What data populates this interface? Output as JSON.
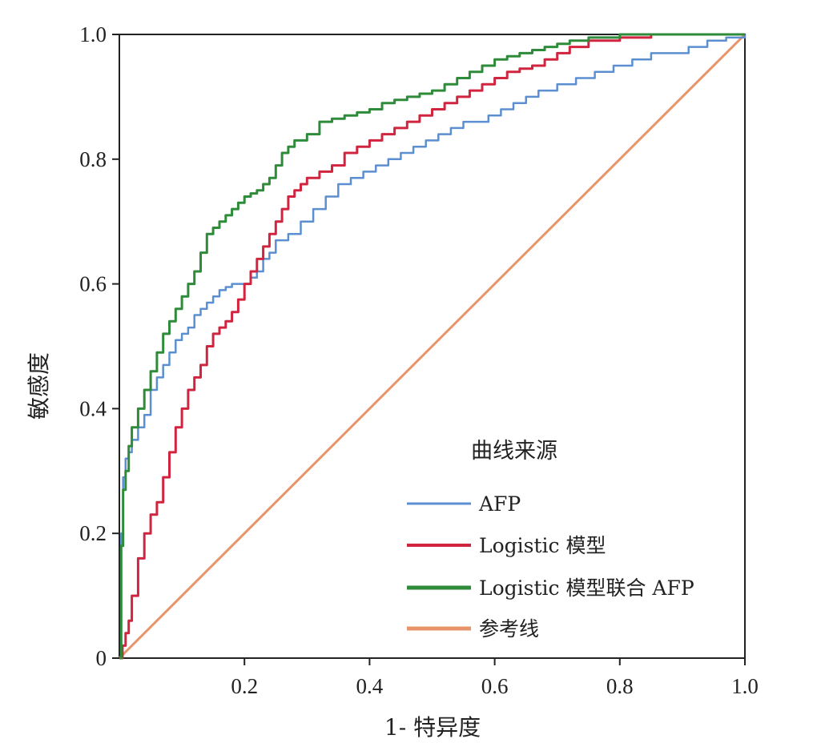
{
  "chart_data": {
    "type": "line",
    "title": "",
    "xlabel": "1- 特异度",
    "ylabel": "敏感度",
    "xlim": [
      0,
      1
    ],
    "ylim": [
      0,
      1
    ],
    "xticks": [
      0.2,
      0.4,
      0.6,
      0.8,
      1.0
    ],
    "xtick_labels": [
      "0.2",
      "0.4",
      "0.6",
      "0.8",
      "1.0"
    ],
    "yticks": [
      0,
      0.2,
      0.4,
      0.6,
      0.8,
      1.0
    ],
    "ytick_labels": [
      "0",
      "0.2",
      "0.4",
      "0.6",
      "0.8",
      "1.0"
    ],
    "legend": {
      "title": "曲线来源",
      "location": "lower-right"
    },
    "series": [
      {
        "name": "AFP",
        "color": "#5b8fd1",
        "x": [
          0,
          0.003,
          0.006,
          0.01,
          0.015,
          0.02,
          0.03,
          0.04,
          0.05,
          0.06,
          0.07,
          0.08,
          0.09,
          0.1,
          0.11,
          0.12,
          0.13,
          0.14,
          0.15,
          0.16,
          0.17,
          0.18,
          0.19,
          0.2,
          0.21,
          0.22,
          0.23,
          0.24,
          0.25,
          0.27,
          0.29,
          0.31,
          0.33,
          0.35,
          0.37,
          0.39,
          0.41,
          0.43,
          0.45,
          0.47,
          0.49,
          0.51,
          0.53,
          0.55,
          0.57,
          0.59,
          0.61,
          0.63,
          0.65,
          0.67,
          0.7,
          0.73,
          0.76,
          0.79,
          0.82,
          0.85,
          0.88,
          0.91,
          0.94,
          0.97,
          1.0
        ],
        "y": [
          0,
          0.2,
          0.29,
          0.32,
          0.33,
          0.35,
          0.37,
          0.39,
          0.43,
          0.45,
          0.47,
          0.49,
          0.51,
          0.52,
          0.53,
          0.55,
          0.56,
          0.57,
          0.58,
          0.59,
          0.595,
          0.6,
          0.6,
          0.6,
          0.61,
          0.62,
          0.64,
          0.65,
          0.67,
          0.68,
          0.7,
          0.72,
          0.74,
          0.76,
          0.77,
          0.78,
          0.79,
          0.8,
          0.81,
          0.82,
          0.83,
          0.84,
          0.85,
          0.86,
          0.86,
          0.87,
          0.88,
          0.89,
          0.9,
          0.91,
          0.92,
          0.93,
          0.94,
          0.95,
          0.96,
          0.97,
          0.97,
          0.98,
          0.99,
          0.995,
          1.0
        ]
      },
      {
        "name": "Logistic 模型",
        "color": "#d0243f",
        "x": [
          0,
          0.005,
          0.01,
          0.015,
          0.02,
          0.03,
          0.04,
          0.05,
          0.06,
          0.07,
          0.08,
          0.09,
          0.1,
          0.11,
          0.12,
          0.13,
          0.14,
          0.15,
          0.16,
          0.17,
          0.18,
          0.19,
          0.2,
          0.21,
          0.22,
          0.23,
          0.24,
          0.25,
          0.26,
          0.27,
          0.28,
          0.29,
          0.3,
          0.32,
          0.34,
          0.36,
          0.38,
          0.4,
          0.42,
          0.44,
          0.46,
          0.48,
          0.5,
          0.52,
          0.54,
          0.56,
          0.58,
          0.6,
          0.62,
          0.64,
          0.66,
          0.68,
          0.7,
          0.72,
          0.75,
          0.8,
          0.85,
          0.9,
          0.95,
          1.0
        ],
        "y": [
          0,
          0.02,
          0.04,
          0.06,
          0.1,
          0.16,
          0.2,
          0.23,
          0.25,
          0.29,
          0.33,
          0.37,
          0.4,
          0.43,
          0.45,
          0.47,
          0.5,
          0.52,
          0.53,
          0.54,
          0.555,
          0.575,
          0.6,
          0.62,
          0.64,
          0.66,
          0.68,
          0.7,
          0.72,
          0.74,
          0.75,
          0.76,
          0.77,
          0.78,
          0.79,
          0.81,
          0.82,
          0.83,
          0.84,
          0.85,
          0.86,
          0.87,
          0.88,
          0.89,
          0.9,
          0.91,
          0.92,
          0.93,
          0.94,
          0.945,
          0.95,
          0.96,
          0.97,
          0.98,
          0.99,
          0.995,
          1.0,
          1.0,
          1.0,
          1.0
        ]
      },
      {
        "name": "Logistic 模型联合 AFP",
        "color": "#2e8b3a",
        "x": [
          0,
          0.003,
          0.006,
          0.01,
          0.015,
          0.02,
          0.03,
          0.04,
          0.05,
          0.06,
          0.07,
          0.08,
          0.09,
          0.1,
          0.11,
          0.12,
          0.13,
          0.14,
          0.15,
          0.16,
          0.17,
          0.18,
          0.19,
          0.2,
          0.21,
          0.22,
          0.23,
          0.24,
          0.25,
          0.26,
          0.27,
          0.28,
          0.3,
          0.32,
          0.34,
          0.36,
          0.38,
          0.4,
          0.42,
          0.44,
          0.46,
          0.48,
          0.5,
          0.52,
          0.54,
          0.56,
          0.58,
          0.6,
          0.62,
          0.64,
          0.66,
          0.68,
          0.7,
          0.72,
          0.75,
          0.8,
          0.85,
          0.9,
          0.95,
          1.0
        ],
        "y": [
          0,
          0.18,
          0.27,
          0.3,
          0.34,
          0.37,
          0.4,
          0.43,
          0.46,
          0.49,
          0.52,
          0.54,
          0.56,
          0.58,
          0.6,
          0.62,
          0.65,
          0.68,
          0.69,
          0.7,
          0.71,
          0.72,
          0.73,
          0.74,
          0.745,
          0.75,
          0.76,
          0.77,
          0.79,
          0.81,
          0.82,
          0.83,
          0.84,
          0.86,
          0.865,
          0.87,
          0.875,
          0.88,
          0.89,
          0.895,
          0.9,
          0.905,
          0.91,
          0.92,
          0.93,
          0.94,
          0.95,
          0.96,
          0.965,
          0.97,
          0.975,
          0.98,
          0.985,
          0.99,
          0.995,
          1.0,
          1.0,
          1.0,
          1.0,
          1.0
        ]
      },
      {
        "name": "参考线",
        "color": "#e8946a",
        "x": [
          0,
          1
        ],
        "y": [
          0,
          1
        ]
      }
    ]
  }
}
